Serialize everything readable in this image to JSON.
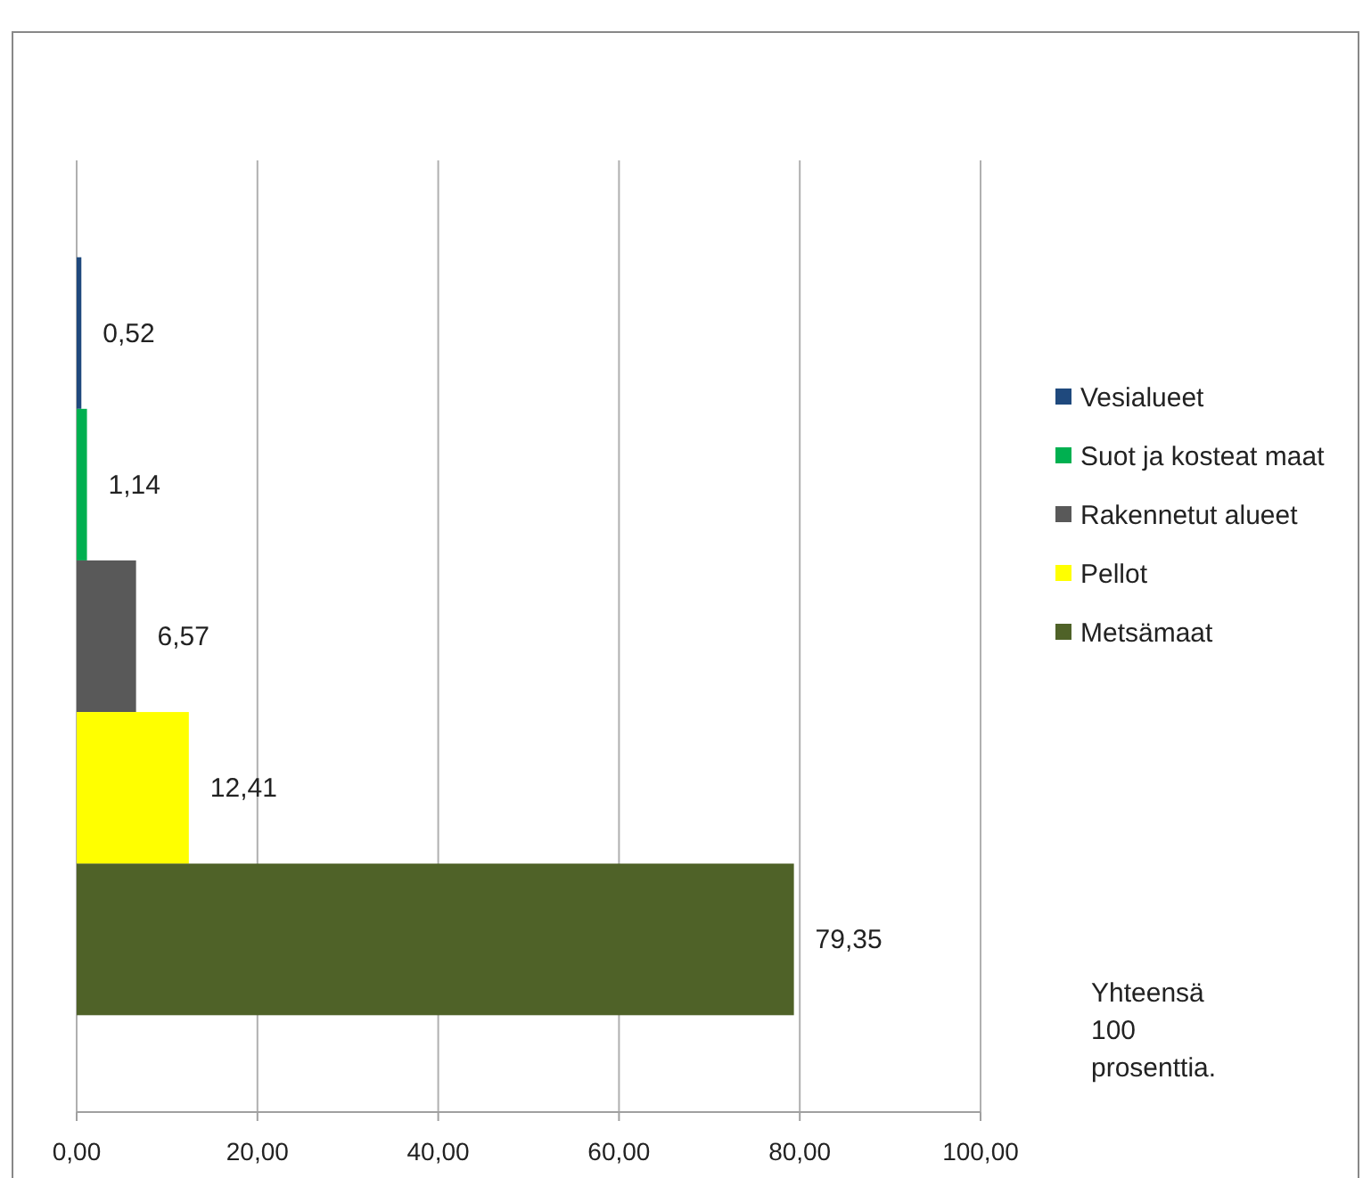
{
  "chart_data": {
    "type": "bar",
    "orientation": "horizontal",
    "categories": [
      null
    ],
    "series": [
      {
        "name": "Vesialueet",
        "color": "#1f497d",
        "values": [
          0.52
        ],
        "value_labels": [
          "0,52"
        ]
      },
      {
        "name": "Suot ja kosteat maat",
        "color": "#00b050",
        "values": [
          1.14
        ],
        "value_labels": [
          "1,14"
        ]
      },
      {
        "name": "Rakennetut alueet",
        "color": "#595959",
        "values": [
          6.57
        ],
        "value_labels": [
          "6,57"
        ]
      },
      {
        "name": "Pellot",
        "color": "#ffff00",
        "values": [
          12.41
        ],
        "value_labels": [
          "12,41"
        ]
      },
      {
        "name": "Metsämaat",
        "color": "#4f6228",
        "values": [
          79.35
        ],
        "value_labels": [
          "79,35"
        ]
      }
    ],
    "xlim": [
      0,
      100
    ],
    "xticks": [
      {
        "value": 0,
        "label": "0,00"
      },
      {
        "value": 20,
        "label": "20,00"
      },
      {
        "value": 40,
        "label": "40,00"
      },
      {
        "value": 60,
        "label": "60,00"
      },
      {
        "value": 80,
        "label": "80,00"
      },
      {
        "value": 100,
        "label": "100,00"
      }
    ],
    "grid": "x",
    "legend": "right",
    "annotations": [
      "Yhteensä 100 prosenttia."
    ]
  }
}
